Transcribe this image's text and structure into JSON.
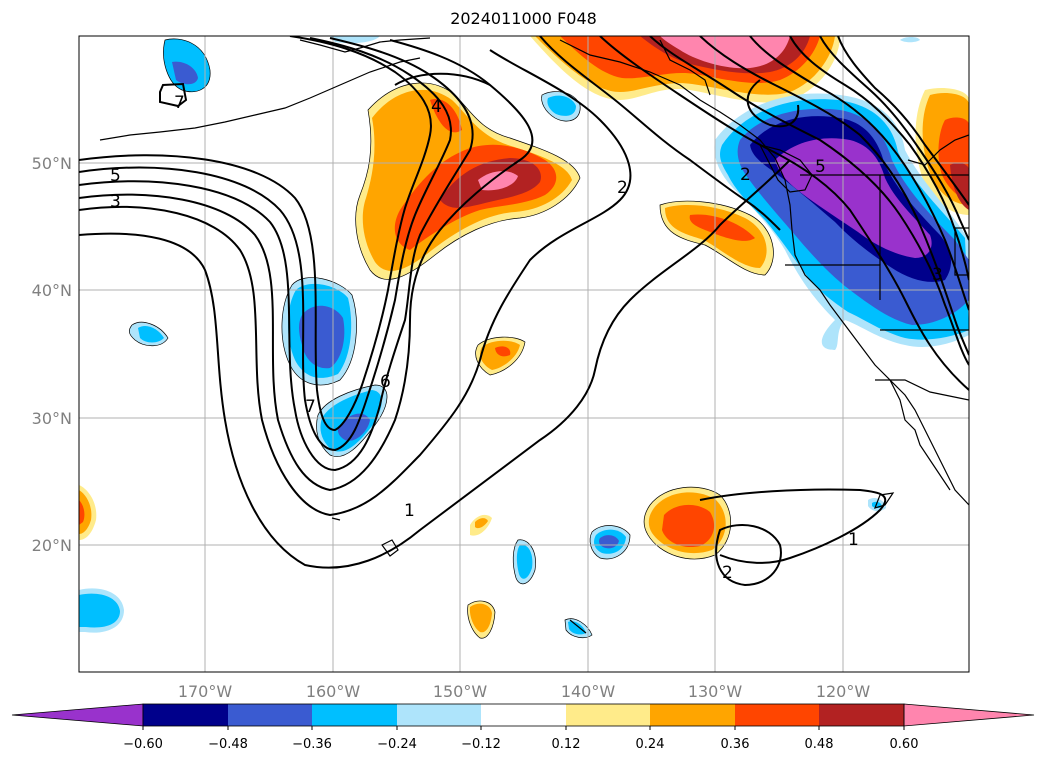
{
  "title": "2024011000 F048",
  "map": {
    "lat_labels": [
      "50°N",
      "40°N",
      "30°N",
      "20°N"
    ],
    "lon_labels": [
      "170°W",
      "160°W",
      "150°W",
      "140°W",
      "130°W",
      "120°W"
    ],
    "contour_labels": [
      "7",
      "5",
      "3",
      "4",
      "2",
      "2",
      "5",
      "6",
      "7",
      "1",
      "1",
      "2",
      "3"
    ],
    "colors": {
      "neg_060": "#9932cc",
      "neg_048": "#00008b",
      "neg_036": "#3a5bd1",
      "neg_024": "#00bfff",
      "neg_012": "#aee4fb",
      "pos_012": "#ffeb8a",
      "pos_024": "#ffa500",
      "pos_036": "#ff4500",
      "pos_048": "#b22222",
      "pos_060": "#ff85ae"
    }
  },
  "colorbar": {
    "ticks": [
      "−0.60",
      "−0.48",
      "−0.36",
      "−0.24",
      "−0.12",
      "0.12",
      "0.24",
      "0.36",
      "0.48",
      "0.60"
    ]
  }
}
